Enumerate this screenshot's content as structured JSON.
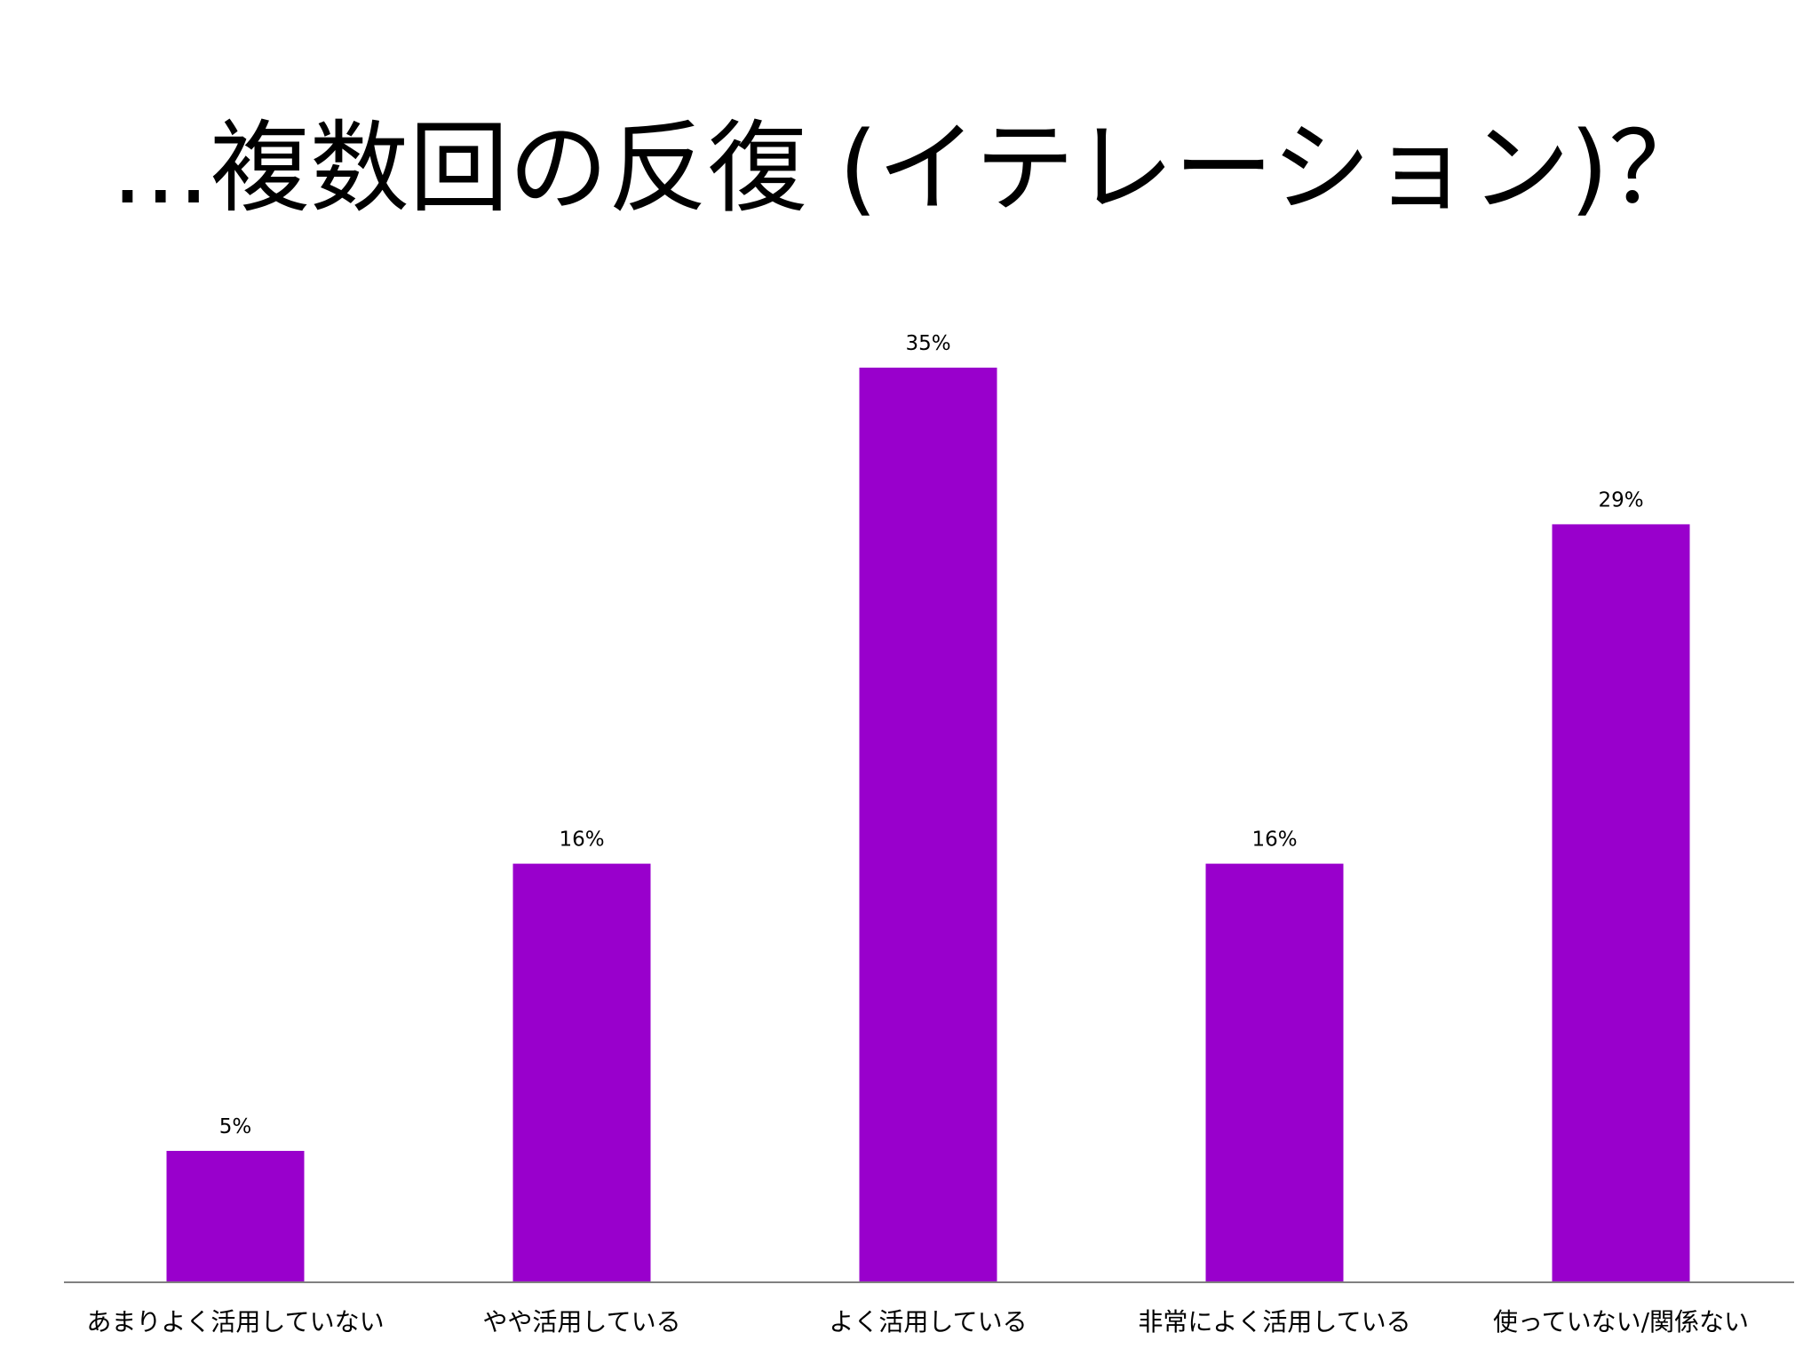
{
  "title": "…複数回の反復 (イテレーション)？",
  "chart_data": {
    "type": "bar",
    "categories": [
      "あまりよく活用していない",
      "やや活用している",
      "よく活用している",
      "非常によく活用している",
      "使っていない/関係ない"
    ],
    "values": [
      5,
      16,
      35,
      16,
      29
    ],
    "value_labels": [
      "5%",
      "16%",
      "35%",
      "16%",
      "29%"
    ],
    "unit": "%",
    "ylim": [
      0,
      35
    ],
    "grid": false,
    "legend": "none",
    "colors": {
      "bar": "#9900CC",
      "axis": "#808080",
      "text": "#000000"
    }
  }
}
